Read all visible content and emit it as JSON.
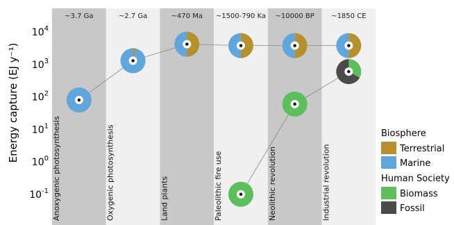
{
  "chart_data": {
    "type": "scatter",
    "ylabel": "Energy capture (EJ y⁻¹)",
    "yscale": "log",
    "ylim_exp": [
      -1.6,
      4.9
    ],
    "y_ticks": [
      {
        "base": "10",
        "exp": "4",
        "value": 10000
      },
      {
        "base": "10",
        "exp": "3",
        "value": 1000
      },
      {
        "base": "10",
        "exp": "2",
        "value": 100
      },
      {
        "base": "10",
        "exp": "1",
        "value": 10
      },
      {
        "base": "10",
        "exp": "0",
        "value": 1
      },
      {
        "base": "10",
        "exp": "-1",
        "value": 0.1
      }
    ],
    "columns": [
      {
        "period": "~3.7 Ga",
        "event": "Anoxygenic photosynthesis",
        "shade": "#c8c8c8"
      },
      {
        "period": "~2.7 Ga",
        "event": "Oxygenic photosynthesis",
        "shade": "#f0f0f0"
      },
      {
        "period": "~470 Ma",
        "event": "Land plants",
        "shade": "#c8c8c8"
      },
      {
        "period": "~1500-790 Ka",
        "event": "Paleolithic fire use",
        "shade": "#f0f0f0"
      },
      {
        "period": "~10000 BP",
        "event": "Neolithic revolution",
        "shade": "#c8c8c8"
      },
      {
        "period": "~1850 CE",
        "event": "Industrial revolution",
        "shade": "#f0f0f0"
      }
    ],
    "series": [
      {
        "name": "Biosphere",
        "points": [
          {
            "column": 0,
            "y": 80,
            "slices": {
              "terrestrial": 0.0,
              "marine": 1.0
            }
          },
          {
            "column": 1,
            "y": 1300,
            "slices": {
              "terrestrial": 0.04,
              "marine": 0.96
            }
          },
          {
            "column": 2,
            "y": 4200,
            "slices": {
              "terrestrial": 0.5,
              "marine": 0.5
            }
          },
          {
            "column": 3,
            "y": 3800,
            "slices": {
              "terrestrial": 0.5,
              "marine": 0.5
            }
          },
          {
            "column": 4,
            "y": 3800,
            "slices": {
              "terrestrial": 0.5,
              "marine": 0.5
            }
          },
          {
            "column": 5,
            "y": 3800,
            "slices": {
              "terrestrial": 0.5,
              "marine": 0.5
            }
          }
        ]
      },
      {
        "name": "Human Society",
        "points": [
          {
            "column": 3,
            "y": 0.1,
            "slices": {
              "biomass": 1.0,
              "fossil": 0.0
            }
          },
          {
            "column": 4,
            "y": 60,
            "slices": {
              "biomass": 1.0,
              "fossil": 0.0
            }
          },
          {
            "column": 5,
            "y": 600,
            "slices": {
              "biomass": 0.33,
              "fossil": 0.67
            }
          }
        ]
      }
    ],
    "legend": {
      "placement": "right",
      "groups": [
        {
          "title": "Biosphere",
          "items": [
            {
              "key": "terrestrial",
              "label": "Terrestrial",
              "color": "#b5902c"
            },
            {
              "key": "marine",
              "label": "Marine",
              "color": "#5ea6dc"
            }
          ]
        },
        {
          "title": "Human Society",
          "items": [
            {
              "key": "biomass",
              "label": "Biomass",
              "color": "#5cbf5c"
            },
            {
              "key": "fossil",
              "label": "Fossil",
              "color": "#4a4a4a"
            }
          ]
        }
      ]
    },
    "colors": {
      "terrestrial": "#b5902c",
      "marine": "#5ea6dc",
      "biomass": "#5cbf5c",
      "fossil": "#4a4a4a",
      "connector": "#888888"
    }
  }
}
